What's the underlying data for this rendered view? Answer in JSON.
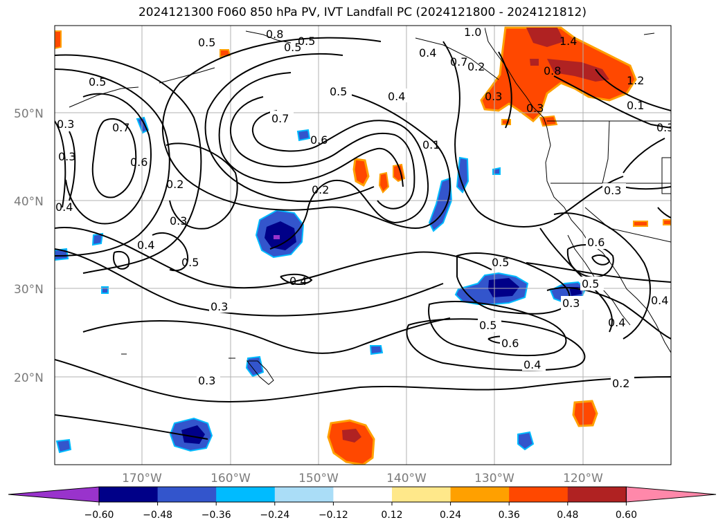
{
  "title": "2024121300 F060 850 hPa PV, IVT Landfall PC (2024121800 - 2024121812)",
  "lat_labels": [
    "50°N",
    "40°N",
    "30°N",
    "20°N"
  ],
  "lon_labels": [
    "170°W",
    "160°W",
    "150°W",
    "140°W",
    "130°W",
    "120°W"
  ],
  "contour_labels": [
    "0.5",
    "0.8",
    "0.5",
    "1.0",
    "1.4",
    "0.4",
    "0.3",
    "0.5",
    "0.3",
    "0.3",
    "0.7",
    "0.6",
    "0.7",
    "0.6",
    "0.2",
    "0.3",
    "0.5",
    "0.4",
    "0.5",
    "0.4",
    "0.2",
    "0.4",
    "0.1",
    "0.6",
    "0.5",
    "0.3",
    "0.4",
    "0.6",
    "0.3",
    "0.5",
    "0.4",
    "0.3",
    "0.5",
    "0.4",
    "0.2",
    "0.3",
    "0.4",
    "0.7",
    "0.8",
    "1.2",
    "0.3",
    "0.1",
    "0.3",
    "0.5",
    "0.2"
  ],
  "colorbar": {
    "ticks": [
      "−0.60",
      "−0.48",
      "−0.36",
      "−0.24",
      "−0.12",
      "0.12",
      "0.24",
      "0.36",
      "0.48",
      "0.60"
    ],
    "colors": [
      "#9933cc",
      "#000088",
      "#3355cc",
      "#00bbff",
      "#aaddf7",
      "#ffffff",
      "#ffe88a",
      "#ffa000",
      "#ff4800",
      "#b02222",
      "#ff88aa"
    ]
  }
}
